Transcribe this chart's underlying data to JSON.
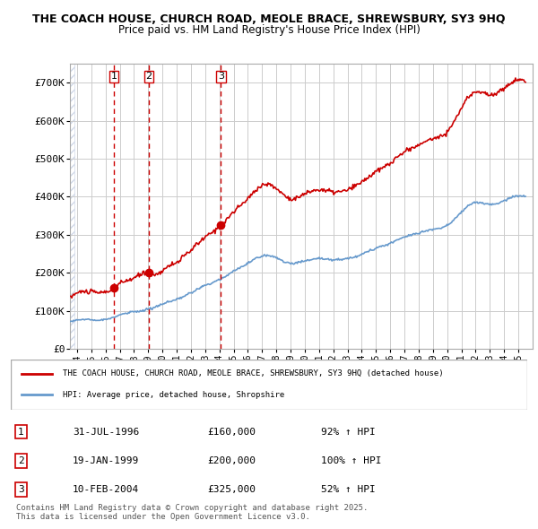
{
  "title_line1": "THE COACH HOUSE, CHURCH ROAD, MEOLE BRACE, SHREWSBURY, SY3 9HQ",
  "title_line2": "Price paid vs. HM Land Registry's House Price Index (HPI)",
  "ylabel": "",
  "ylim": [
    0,
    750000
  ],
  "yticks": [
    0,
    100000,
    200000,
    300000,
    400000,
    500000,
    600000,
    700000
  ],
  "ytick_labels": [
    "£0",
    "£100K",
    "£200K",
    "£300K",
    "£400K",
    "£500K",
    "£600K",
    "£700K"
  ],
  "sale_dates_num": [
    1996.58,
    1999.05,
    2004.11
  ],
  "sale_prices": [
    160000,
    200000,
    325000
  ],
  "sale_labels": [
    "1",
    "2",
    "3"
  ],
  "sale_info": [
    {
      "label": "1",
      "date": "31-JUL-1996",
      "price": "£160,000",
      "pct": "92% ↑ HPI"
    },
    {
      "label": "2",
      "date": "19-JAN-1999",
      "price": "£200,000",
      "pct": "100% ↑ HPI"
    },
    {
      "label": "3",
      "date": "10-FEB-2004",
      "price": "£325,000",
      "pct": "52% ↑ HPI"
    }
  ],
  "hpi_color": "#6699cc",
  "price_color": "#cc0000",
  "bg_hatch_color": "#d0d8e8",
  "grid_color": "#cccccc",
  "legend_line1": "THE COACH HOUSE, CHURCH ROAD, MEOLE BRACE, SHREWSBURY, SY3 9HQ (detached house)",
  "legend_line2": "HPI: Average price, detached house, Shropshire",
  "footer_line1": "Contains HM Land Registry data © Crown copyright and database right 2025.",
  "footer_line2": "This data is licensed under the Open Government Licence v3.0.",
  "xlim_left": 1993.5,
  "xlim_right": 2026.0,
  "xtick_years": [
    1994,
    1995,
    1996,
    1997,
    1998,
    1999,
    2000,
    2001,
    2002,
    2003,
    2004,
    2005,
    2006,
    2007,
    2008,
    2009,
    2010,
    2011,
    2012,
    2013,
    2014,
    2015,
    2016,
    2017,
    2018,
    2019,
    2020,
    2021,
    2022,
    2023,
    2024,
    2025
  ]
}
